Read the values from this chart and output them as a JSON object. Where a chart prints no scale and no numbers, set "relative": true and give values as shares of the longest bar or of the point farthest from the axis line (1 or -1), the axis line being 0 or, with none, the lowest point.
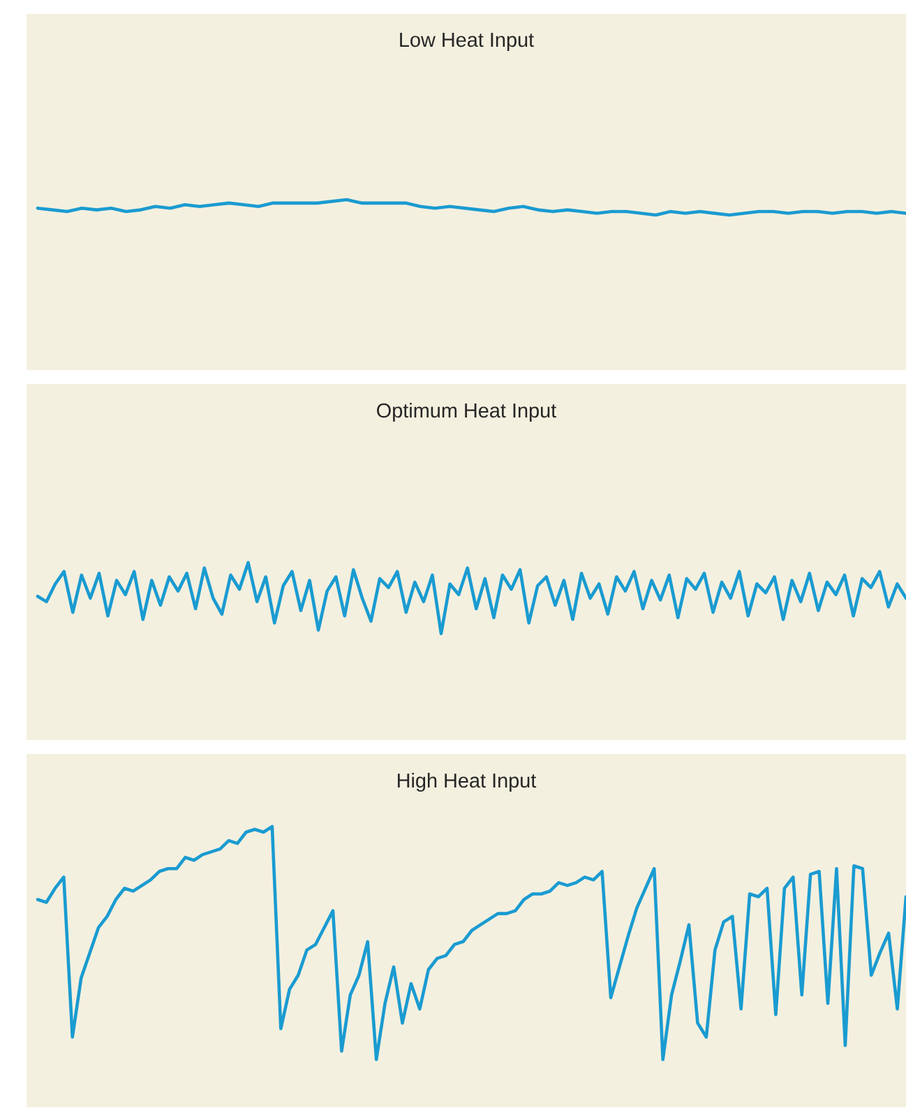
{
  "chart_data": [
    {
      "type": "line",
      "title": "Low Heat Input",
      "relative": true,
      "categories": [
        null,
        null,
        null,
        null,
        null,
        null,
        null,
        null,
        null,
        null,
        null,
        null,
        null,
        null,
        null,
        null,
        null,
        null,
        null,
        null,
        null,
        null,
        null,
        null,
        null,
        null,
        null,
        null,
        null,
        null,
        null,
        null,
        null,
        null,
        null,
        null,
        null,
        null,
        null,
        null,
        null,
        null,
        null,
        null,
        null,
        null,
        null,
        null,
        null,
        null,
        null,
        null,
        null,
        null,
        null,
        null,
        null,
        null,
        null,
        null
      ],
      "series": [
        {
          "color": "#1a9bd1",
          "values": [
            0.95,
            0.94,
            0.93,
            0.95,
            0.94,
            0.95,
            0.93,
            0.94,
            0.96,
            0.95,
            0.97,
            0.96,
            0.97,
            0.98,
            0.97,
            0.96,
            0.98,
            0.98,
            0.98,
            0.98,
            0.99,
            1,
            0.98,
            0.98,
            0.98,
            0.98,
            0.96,
            0.95,
            0.96,
            0.95,
            0.94,
            0.93,
            0.95,
            0.96,
            0.94,
            0.93,
            0.94,
            0.93,
            0.92,
            0.93,
            0.93,
            0.92,
            0.91,
            0.93,
            0.92,
            0.93,
            0.92,
            0.91,
            0.92,
            0.93,
            0.93,
            0.92,
            0.93,
            0.93,
            0.92,
            0.93,
            0.93,
            0.92,
            0.93,
            0.92
          ]
        }
      ]
    },
    {
      "type": "line",
      "title": "Optimum Heat Input",
      "relative": true,
      "categories": [
        null,
        null,
        null,
        null,
        null,
        null,
        null,
        null,
        null,
        null,
        null,
        null,
        null,
        null,
        null,
        null,
        null,
        null,
        null,
        null,
        null,
        null,
        null,
        null,
        null,
        null,
        null,
        null,
        null,
        null,
        null,
        null,
        null,
        null,
        null,
        null,
        null,
        null,
        null,
        null,
        null,
        null,
        null,
        null,
        null,
        null,
        null,
        null,
        null,
        null,
        null,
        null,
        null,
        null,
        null,
        null,
        null,
        null,
        null,
        null,
        null,
        null,
        null,
        null,
        null,
        null,
        null,
        null,
        null,
        null,
        null,
        null,
        null,
        null,
        null,
        null,
        null,
        null,
        null,
        null,
        null,
        null,
        null,
        null,
        null,
        null,
        null,
        null,
        null,
        null,
        null,
        null,
        null,
        null,
        null,
        null,
        null,
        null,
        null,
        null
      ],
      "series": [
        {
          "color": "#1a9bd1",
          "values": [
            0.81,
            0.78,
            0.88,
            0.95,
            0.72,
            0.93,
            0.8,
            0.94,
            0.7,
            0.9,
            0.82,
            0.95,
            0.68,
            0.9,
            0.76,
            0.92,
            0.84,
            0.94,
            0.74,
            0.97,
            0.8,
            0.71,
            0.93,
            0.85,
            1,
            0.78,
            0.92,
            0.66,
            0.87,
            0.95,
            0.73,
            0.9,
            0.62,
            0.84,
            0.92,
            0.7,
            0.96,
            0.8,
            0.67,
            0.91,
            0.86,
            0.95,
            0.72,
            0.89,
            0.78,
            0.93,
            0.6,
            0.88,
            0.82,
            0.97,
            0.74,
            0.91,
            0.69,
            0.93,
            0.85,
            0.96,
            0.66,
            0.87,
            0.92,
            0.76,
            0.9,
            0.68,
            0.94,
            0.8,
            0.88,
            0.71,
            0.92,
            0.84,
            0.95,
            0.74,
            0.9,
            0.79,
            0.93,
            0.69,
            0.91,
            0.85,
            0.94,
            0.72,
            0.89,
            0.8,
            0.95,
            0.7,
            0.88,
            0.83,
            0.92,
            0.68,
            0.9,
            0.78,
            0.94,
            0.73,
            0.89,
            0.82,
            0.93,
            0.7,
            0.91,
            0.86,
            0.95,
            0.75,
            0.88,
            0.8
          ]
        }
      ]
    },
    {
      "type": "line",
      "title": "High Heat Input",
      "relative": true,
      "categories": [
        null,
        null,
        null,
        null,
        null,
        null,
        null,
        null,
        null,
        null,
        null,
        null,
        null,
        null,
        null,
        null,
        null,
        null,
        null,
        null,
        null,
        null,
        null,
        null,
        null,
        null,
        null,
        null,
        null,
        null,
        null,
        null,
        null,
        null,
        null,
        null,
        null,
        null,
        null,
        null,
        null,
        null,
        null,
        null,
        null,
        null,
        null,
        null,
        null,
        null,
        null,
        null,
        null,
        null,
        null,
        null,
        null,
        null,
        null,
        null,
        null,
        null,
        null,
        null,
        null,
        null,
        null,
        null,
        null,
        null,
        null,
        null,
        null,
        null,
        null,
        null,
        null,
        null,
        null,
        null,
        null,
        null,
        null,
        null,
        null,
        null,
        null,
        null,
        null,
        null,
        null,
        null,
        null,
        null,
        null,
        null,
        null,
        null,
        null,
        null,
        null
      ],
      "series": [
        {
          "color": "#1a9bd1",
          "values": [
            0.74,
            0.73,
            0.78,
            0.82,
            0.25,
            0.46,
            0.55,
            0.64,
            0.68,
            0.74,
            0.78,
            0.77,
            0.79,
            0.81,
            0.84,
            0.85,
            0.85,
            0.89,
            0.88,
            0.9,
            0.91,
            0.92,
            0.95,
            0.94,
            0.98,
            0.99,
            0.98,
            1,
            0.28,
            0.42,
            0.47,
            0.56,
            0.58,
            0.64,
            0.7,
            0.2,
            0.4,
            0.47,
            0.59,
            0.17,
            0.37,
            0.5,
            0.3,
            0.44,
            0.35,
            0.49,
            0.53,
            0.54,
            0.58,
            0.59,
            0.63,
            0.65,
            0.67,
            0.69,
            0.69,
            0.7,
            0.74,
            0.76,
            0.76,
            0.77,
            0.8,
            0.79,
            0.8,
            0.82,
            0.81,
            0.84,
            0.39,
            0.5,
            0.61,
            0.71,
            0.78,
            0.85,
            0.17,
            0.4,
            0.52,
            0.65,
            0.3,
            0.25,
            0.56,
            0.66,
            0.68,
            0.35,
            0.76,
            0.75,
            0.78,
            0.33,
            0.78,
            0.82,
            0.4,
            0.83,
            0.84,
            0.37,
            0.85,
            0.22,
            0.86,
            0.85,
            0.47,
            0.55,
            0.62,
            0.35,
            0.75
          ]
        }
      ]
    }
  ]
}
